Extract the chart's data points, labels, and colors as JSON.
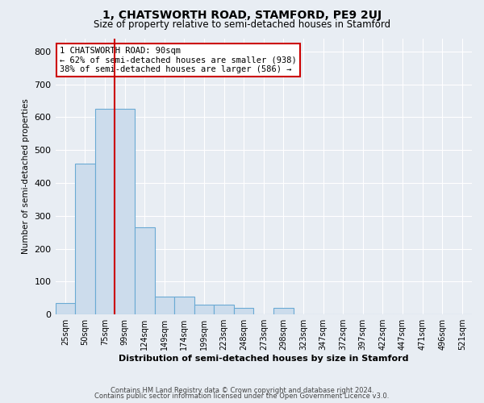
{
  "title": "1, CHATSWORTH ROAD, STAMFORD, PE9 2UJ",
  "subtitle": "Size of property relative to semi-detached houses in Stamford",
  "xlabel": "Distribution of semi-detached houses by size in Stamford",
  "ylabel": "Number of semi-detached properties",
  "bar_labels": [
    "25sqm",
    "50sqm",
    "75sqm",
    "99sqm",
    "124sqm",
    "149sqm",
    "174sqm",
    "199sqm",
    "223sqm",
    "248sqm",
    "273sqm",
    "298sqm",
    "323sqm",
    "347sqm",
    "372sqm",
    "397sqm",
    "422sqm",
    "447sqm",
    "471sqm",
    "496sqm",
    "521sqm"
  ],
  "bar_heights": [
    35,
    460,
    625,
    625,
    265,
    55,
    55,
    30,
    30,
    20,
    0,
    20,
    0,
    0,
    0,
    0,
    0,
    0,
    0,
    0,
    0
  ],
  "bar_color": "#ccdcec",
  "bar_edgecolor": "#6aaad4",
  "bar_linewidth": 0.8,
  "vline_position": 2.5,
  "vline_color": "#cc0000",
  "annotation_text": "1 CHATSWORTH ROAD: 90sqm\n← 62% of semi-detached houses are smaller (938)\n38% of semi-detached houses are larger (586) →",
  "annotation_box_facecolor": "#ffffff",
  "annotation_box_edgecolor": "#cc0000",
  "annotation_fontsize": 7.5,
  "ylim": [
    0,
    840
  ],
  "yticks": [
    0,
    100,
    200,
    300,
    400,
    500,
    600,
    700,
    800
  ],
  "background_color": "#e8edf3",
  "grid_color": "#ffffff",
  "title_fontsize": 10,
  "subtitle_fontsize": 8.5,
  "xlabel_fontsize": 8,
  "ylabel_fontsize": 7.5,
  "tick_fontsize": 7,
  "footer_line1": "Contains HM Land Registry data © Crown copyright and database right 2024.",
  "footer_line2": "Contains public sector information licensed under the Open Government Licence v3.0."
}
